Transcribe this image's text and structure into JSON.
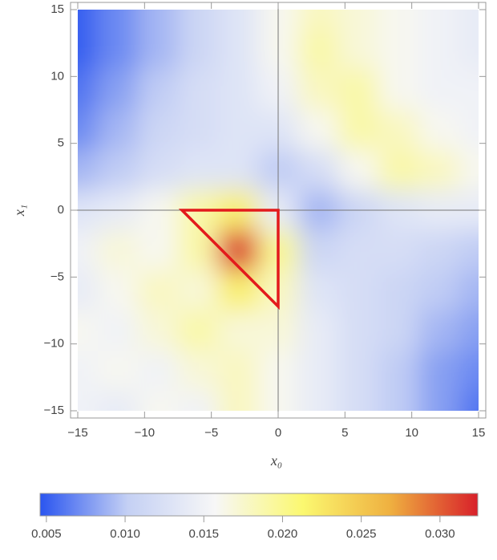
{
  "chart_data": {
    "type": "heatmap",
    "xlabel": "x₀",
    "ylabel": "x₁",
    "x": [
      -15,
      -12,
      -9,
      -6,
      -3,
      0,
      3,
      6,
      9,
      12,
      15
    ],
    "y": [
      15,
      12,
      9,
      6,
      3,
      0,
      -3,
      -6,
      -9,
      -12,
      -15
    ],
    "z": [
      [
        0.005,
        0.007,
        0.009,
        0.011,
        0.013,
        0.016,
        0.018,
        0.017,
        0.016,
        0.015,
        0.014
      ],
      [
        0.005,
        0.007,
        0.009,
        0.011,
        0.013,
        0.016,
        0.019,
        0.017,
        0.016,
        0.015,
        0.014
      ],
      [
        0.006,
        0.008,
        0.01,
        0.012,
        0.013,
        0.015,
        0.018,
        0.019,
        0.016,
        0.015,
        0.015
      ],
      [
        0.007,
        0.009,
        0.011,
        0.012,
        0.013,
        0.013,
        0.016,
        0.019,
        0.018,
        0.016,
        0.015
      ],
      [
        0.009,
        0.01,
        0.012,
        0.013,
        0.013,
        0.01,
        0.012,
        0.016,
        0.019,
        0.018,
        0.016
      ],
      [
        0.013,
        0.014,
        0.016,
        0.019,
        0.022,
        0.014,
        0.009,
        0.011,
        0.013,
        0.014,
        0.014
      ],
      [
        0.015,
        0.017,
        0.016,
        0.019,
        0.032,
        0.02,
        0.011,
        0.012,
        0.012,
        0.011,
        0.01
      ],
      [
        0.014,
        0.016,
        0.018,
        0.017,
        0.022,
        0.018,
        0.013,
        0.012,
        0.011,
        0.01,
        0.009
      ],
      [
        0.016,
        0.015,
        0.017,
        0.019,
        0.017,
        0.017,
        0.014,
        0.012,
        0.011,
        0.009,
        0.008
      ],
      [
        0.015,
        0.016,
        0.015,
        0.017,
        0.018,
        0.016,
        0.014,
        0.012,
        0.01,
        0.008,
        0.007
      ],
      [
        0.015,
        0.014,
        0.016,
        0.015,
        0.018,
        0.016,
        0.014,
        0.012,
        0.01,
        0.008,
        0.006
      ]
    ],
    "xlim": [
      -15,
      15
    ],
    "ylim": [
      -15,
      15
    ],
    "xticks": [
      {
        "value": -15,
        "label": "−15"
      },
      {
        "value": -10,
        "label": "−10"
      },
      {
        "value": -5,
        "label": "−5"
      },
      0,
      5,
      10,
      15
    ],
    "yticks": [
      {
        "value": -15,
        "label": "−15"
      },
      {
        "value": -10,
        "label": "−10"
      },
      {
        "value": -5,
        "label": "−5"
      },
      0,
      5,
      10,
      15
    ],
    "clim": [
      0.0046,
      0.0324
    ],
    "cticks": [
      0.005,
      {
        "value": 0.01,
        "label": "0.010"
      },
      0.015,
      {
        "value": 0.02,
        "label": "0.020"
      },
      0.025,
      {
        "value": 0.03,
        "label": "0.030"
      }
    ],
    "colors": [
      "#2a55f0",
      "#c4d0f4",
      "#f7f7f7",
      "#fbf870",
      "#efb040",
      "#d8202a"
    ],
    "region": {
      "x": [
        -7.2,
        0,
        0
      ],
      "y": [
        0,
        0,
        -7.2
      ],
      "color": "#e31a1c"
    }
  }
}
